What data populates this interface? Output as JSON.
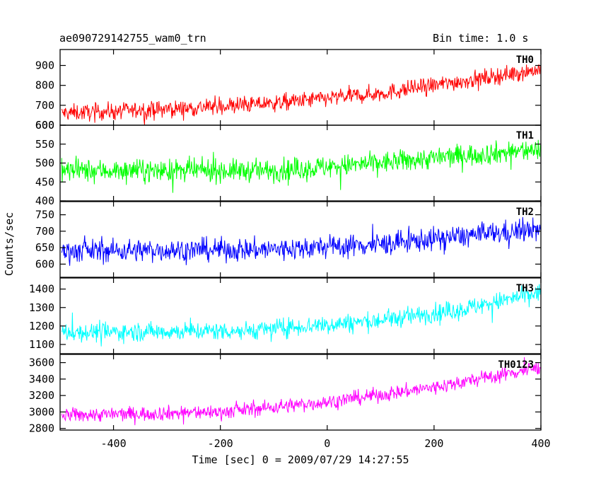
{
  "header": {
    "title": "ae090729142755_wam0_trn",
    "bin_time": "Bin time: 1.0 s"
  },
  "chart_data": {
    "type": "line",
    "xlabel": "Time [sec] 0 = 2009/07/29 14:27:55",
    "ylabel": "Counts/sec",
    "xlim": [
      -500,
      400
    ],
    "data_xrange": [
      -497,
      399
    ],
    "xticks": [
      -400,
      -200,
      0,
      200,
      400
    ],
    "panels": [
      {
        "name": "TH0",
        "color": "#ff0000",
        "ylim": [
          600,
          980
        ],
        "yticks": [
          600,
          700,
          800,
          900
        ],
        "trend": [
          [
            -497,
            660
          ],
          [
            -300,
            680
          ],
          [
            -100,
            710
          ],
          [
            100,
            760
          ],
          [
            250,
            820
          ],
          [
            399,
            880
          ]
        ],
        "noise": 55
      },
      {
        "name": "TH1",
        "color": "#00ff00",
        "ylim": [
          400,
          600
        ],
        "yticks": [
          400,
          450,
          500,
          550,
          600
        ],
        "trend": [
          [
            -497,
            480
          ],
          [
            -100,
            480
          ],
          [
            100,
            500
          ],
          [
            250,
            520
          ],
          [
            399,
            535
          ]
        ],
        "noise": 38
      },
      {
        "name": "TH2",
        "color": "#0000ff",
        "ylim": [
          560,
          790
        ],
        "yticks": [
          600,
          650,
          700,
          750
        ],
        "trend": [
          [
            -497,
            640
          ],
          [
            -100,
            645
          ],
          [
            100,
            660
          ],
          [
            250,
            685
          ],
          [
            399,
            705
          ]
        ],
        "noise": 45
      },
      {
        "name": "TH3",
        "color": "#00ffff",
        "ylim": [
          1050,
          1460
        ],
        "yticks": [
          1100,
          1200,
          1300,
          1400
        ],
        "trend": [
          [
            -497,
            1165
          ],
          [
            -150,
            1175
          ],
          [
            100,
            1230
          ],
          [
            250,
            1290
          ],
          [
            399,
            1380
          ]
        ],
        "noise": 65
      },
      {
        "name": "TH0123",
        "color": "#ff00ff",
        "ylim": [
          2780,
          3700
        ],
        "yticks": [
          2800,
          3000,
          3200,
          3400,
          3600
        ],
        "trend": [
          [
            -497,
            2960
          ],
          [
            -200,
            3000
          ],
          [
            0,
            3120
          ],
          [
            200,
            3300
          ],
          [
            399,
            3540
          ]
        ],
        "noise": 115
      }
    ]
  }
}
